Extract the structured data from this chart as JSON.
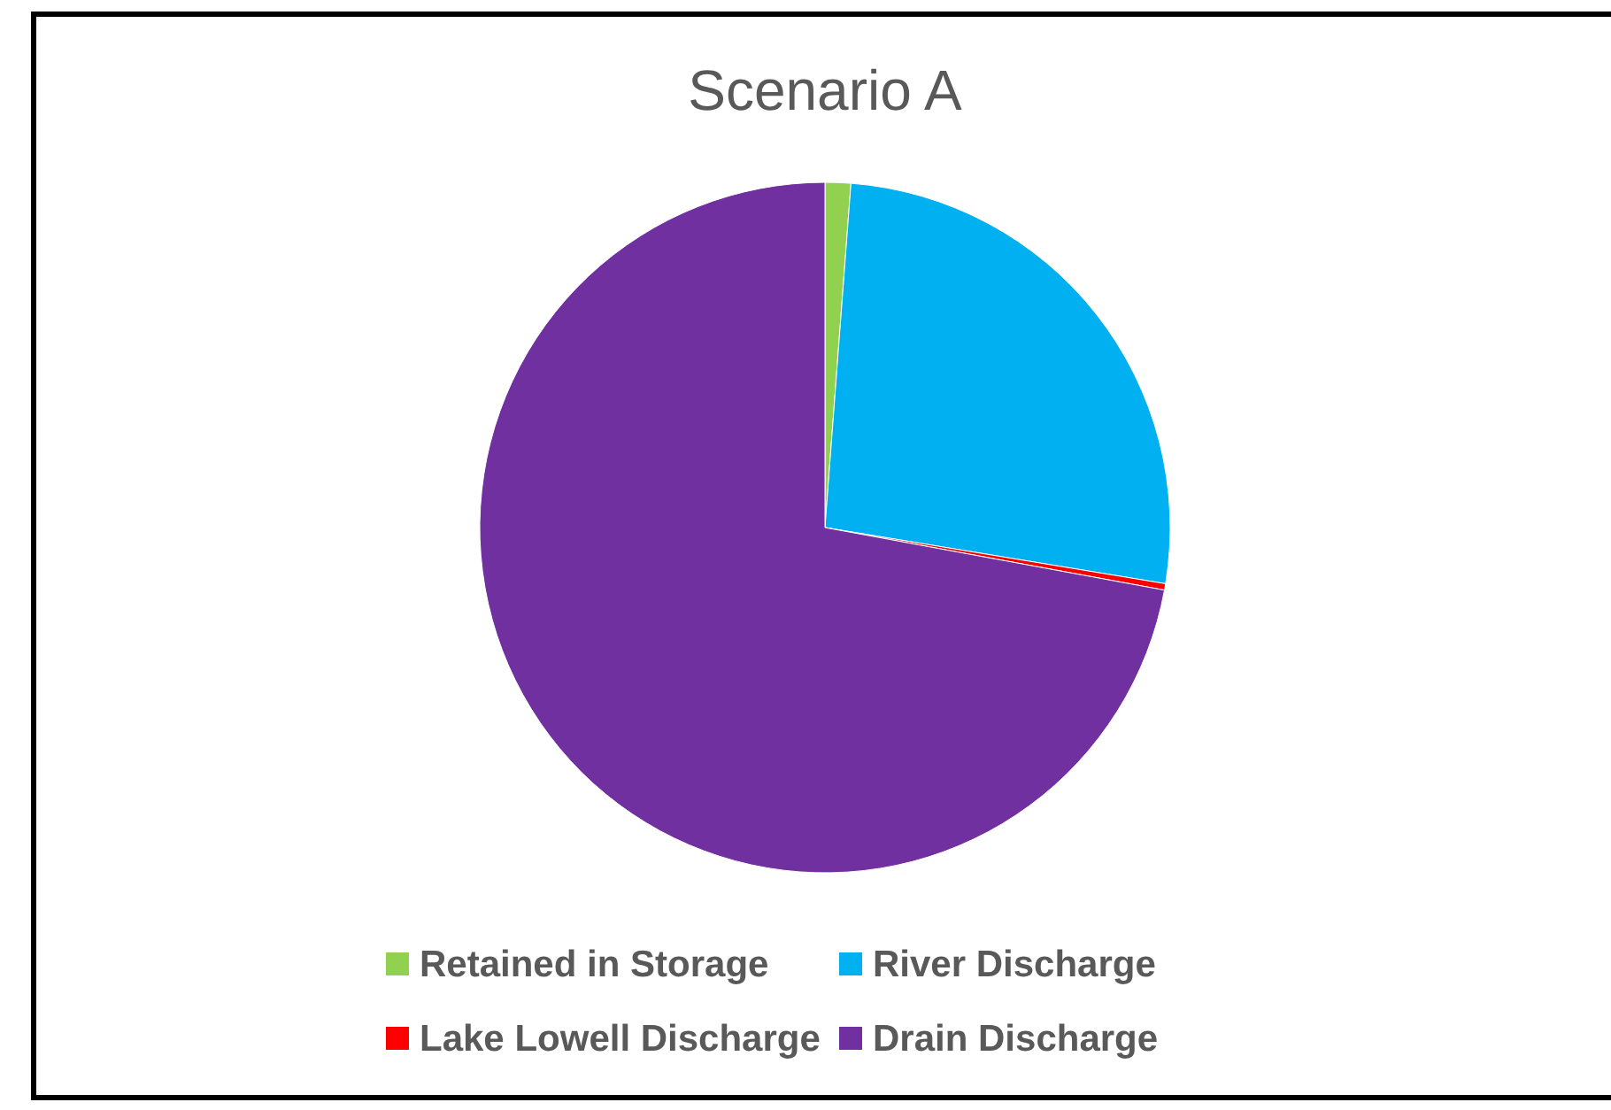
{
  "chart_data": {
    "type": "pie",
    "title": "Scenario A",
    "categories": [
      "Retained in Storage",
      "River Discharge",
      "Lake Lowell Discharge",
      "Drain Discharge"
    ],
    "values": [
      1.2,
      26.4,
      0.3,
      72.1
    ],
    "colors": [
      "#92d050",
      "#00b0f0",
      "#ff0000",
      "#7030a0"
    ],
    "legend": "bottom"
  }
}
